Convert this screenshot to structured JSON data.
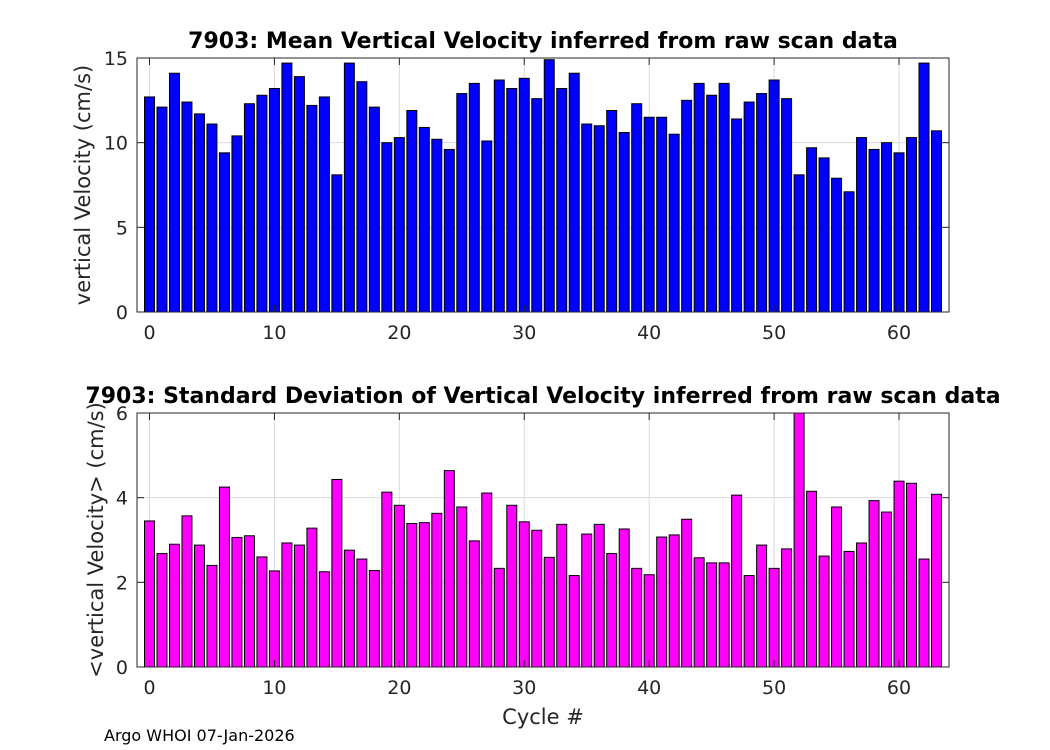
{
  "chart_data": [
    {
      "type": "bar",
      "title": "7903: Mean Vertical Velocity inferred from raw scan data",
      "xlabel": "",
      "ylabel": "vertical Velocity (cm/s)",
      "xlim": [
        -1,
        64
      ],
      "ylim": [
        0,
        15
      ],
      "xticks": [
        0,
        10,
        20,
        30,
        40,
        50,
        60
      ],
      "yticks": [
        0,
        5,
        10,
        15
      ],
      "grid": true,
      "color": "#0000ff",
      "x": [
        0,
        1,
        2,
        3,
        4,
        5,
        6,
        7,
        8,
        9,
        10,
        11,
        12,
        13,
        14,
        15,
        16,
        17,
        18,
        19,
        20,
        21,
        22,
        23,
        24,
        25,
        26,
        27,
        28,
        29,
        30,
        31,
        32,
        33,
        34,
        35,
        36,
        37,
        38,
        39,
        40,
        41,
        42,
        43,
        44,
        45,
        46,
        47,
        48,
        49,
        50,
        51,
        52,
        53,
        54,
        55,
        56,
        57,
        58,
        59,
        60,
        61,
        62,
        63
      ],
      "values": [
        12.7,
        12.1,
        14.1,
        12.4,
        11.7,
        11.1,
        9.4,
        10.4,
        12.3,
        12.8,
        13.2,
        14.7,
        13.9,
        12.2,
        12.7,
        8.1,
        14.7,
        13.6,
        12.1,
        10.0,
        10.3,
        11.9,
        10.9,
        10.2,
        9.6,
        12.9,
        13.5,
        10.1,
        13.7,
        13.2,
        13.8,
        12.6,
        14.9,
        13.2,
        14.1,
        11.1,
        11.0,
        11.9,
        10.6,
        12.3,
        11.5,
        11.5,
        10.5,
        12.5,
        13.5,
        12.8,
        13.5,
        11.4,
        12.4,
        12.9,
        13.7,
        12.6,
        8.1,
        9.7,
        9.1,
        7.9,
        7.1,
        10.3,
        9.6,
        10.0,
        9.4,
        10.3,
        14.7,
        10.7
      ]
    },
    {
      "type": "bar",
      "title": "7903: Standard Deviation of Vertical Velocity inferred from raw scan data",
      "xlabel": "Cycle #",
      "ylabel": "<vertical Velocity> (cm/s)",
      "xlim": [
        -1,
        64
      ],
      "ylim": [
        0,
        6
      ],
      "xticks": [
        0,
        10,
        20,
        30,
        40,
        50,
        60
      ],
      "yticks": [
        0,
        2,
        4,
        6
      ],
      "grid": true,
      "color": "#ff00ff",
      "x": [
        0,
        1,
        2,
        3,
        4,
        5,
        6,
        7,
        8,
        9,
        10,
        11,
        12,
        13,
        14,
        15,
        16,
        17,
        18,
        19,
        20,
        21,
        22,
        23,
        24,
        25,
        26,
        27,
        28,
        29,
        30,
        31,
        32,
        33,
        34,
        35,
        36,
        37,
        38,
        39,
        40,
        41,
        42,
        43,
        44,
        45,
        46,
        47,
        48,
        49,
        50,
        51,
        52,
        53,
        54,
        55,
        56,
        57,
        58,
        59,
        60,
        61,
        62,
        63
      ],
      "values": [
        3.45,
        2.68,
        2.9,
        3.57,
        2.88,
        2.4,
        4.25,
        3.06,
        3.1,
        2.6,
        2.27,
        2.93,
        2.88,
        3.28,
        2.25,
        4.43,
        2.76,
        2.55,
        2.28,
        4.13,
        3.82,
        3.39,
        3.41,
        3.63,
        4.64,
        3.78,
        2.98,
        4.11,
        2.33,
        3.82,
        3.43,
        3.23,
        2.59,
        3.37,
        2.16,
        3.14,
        3.37,
        2.68,
        3.26,
        2.33,
        2.18,
        3.07,
        3.12,
        3.49,
        2.58,
        2.46,
        2.46,
        4.06,
        2.16,
        2.88,
        2.33,
        2.79,
        6.0,
        4.15,
        2.62,
        3.78,
        2.73,
        2.93,
        3.93,
        3.66,
        4.39,
        4.34,
        2.55,
        4.08
      ]
    }
  ],
  "footer": "Argo WHOI 07-Jan-2026"
}
